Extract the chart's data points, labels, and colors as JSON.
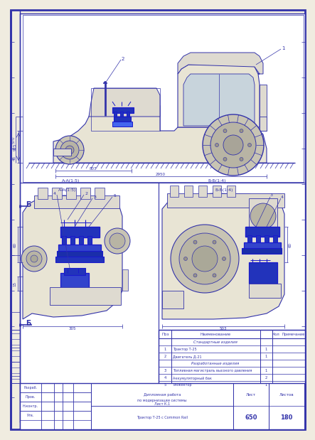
{
  "bg_color": "#f0ece0",
  "white": "#ffffff",
  "border_color": "#3333aa",
  "line_color": "#3333aa",
  "cr_color": "#1a1acc",
  "cr_fill": "#2233bb",
  "tractor_fill": "#e8e4d4",
  "tractor_fill2": "#dedad0",
  "wheel_fill": "#c8c4b4",
  "wheel_fill2": "#b8b4a4",
  "stamp_rows": [
    [
      "",
      "Стандартные изделия",
      ""
    ],
    [
      "1",
      "Трактор Т-25",
      "1"
    ],
    [
      "2",
      "Двигатель Д-21",
      "1"
    ],
    [
      "",
      "Разработанные изделия",
      ""
    ],
    [
      "3",
      "Топливная магистраль высокого давления",
      "1"
    ],
    [
      "4",
      "Аккумуляторный бак",
      "2"
    ],
    [
      "5",
      "Инжектор",
      "1"
    ]
  ],
  "sheet_info_line1": "Дипломная работа",
  "sheet_info_line2": "по модернизации системы",
  "sheet_info_line3": "Лист К.1",
  "sheet_num": "650",
  "total_sheets": "180"
}
